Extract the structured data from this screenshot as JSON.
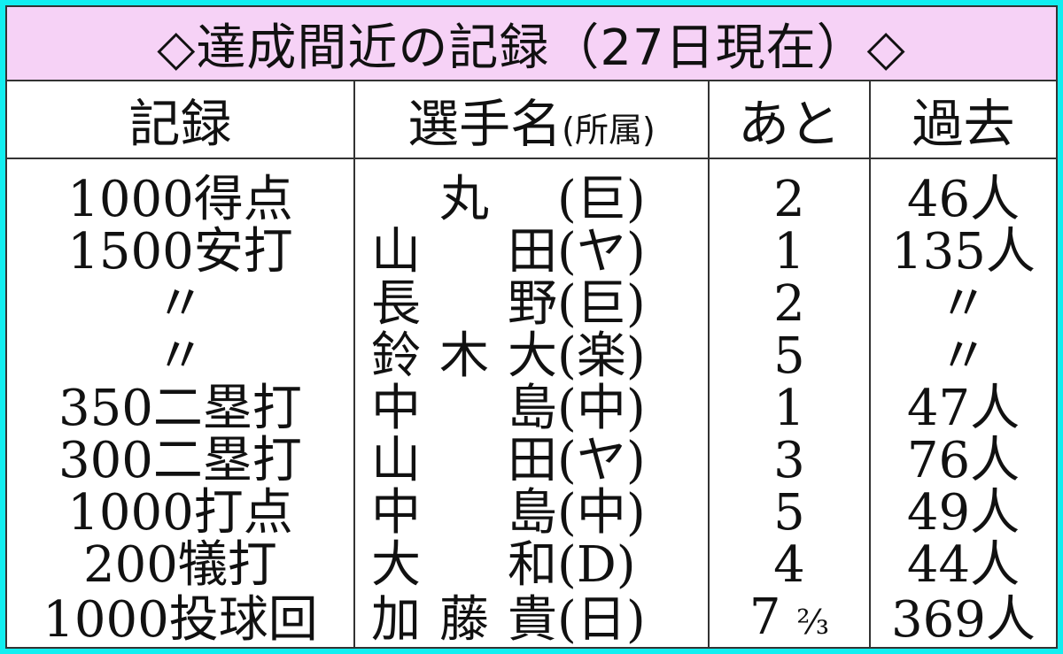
{
  "colors": {
    "border": "#12eef0",
    "title_bg": "#f6d2f6"
  },
  "title": "◇達成間近の記録（27日現在）◇",
  "headers": {
    "record": "記録",
    "player": "選手名",
    "affiliation": "(所属)",
    "remaining": "あと",
    "past": "過去"
  },
  "rows": [
    {
      "record": "1000得点",
      "player": "丸",
      "team": "(巨)",
      "remaining": "2",
      "past": "46人"
    },
    {
      "record": "1500安打",
      "player": "山田",
      "team": "(ヤ)",
      "remaining": "1",
      "past": "135人"
    },
    {
      "record": "〃",
      "player": "長野",
      "team": "(巨)",
      "remaining": "2",
      "past": "〃"
    },
    {
      "record": "〃",
      "player": "鈴木大",
      "team": "(楽)",
      "remaining": "5",
      "past": "〃"
    },
    {
      "record": "350二塁打",
      "player": "中島",
      "team": "(中)",
      "remaining": "1",
      "past": "47人"
    },
    {
      "record": "300二塁打",
      "player": "山田",
      "team": "(ヤ)",
      "remaining": "3",
      "past": "76人"
    },
    {
      "record": "1000打点",
      "player": "中島",
      "team": "(中)",
      "remaining": "5",
      "past": "49人"
    },
    {
      "record": "200犠打",
      "player": "大和",
      "team": "(D)",
      "remaining": "4",
      "past": "44人"
    },
    {
      "record": "1000投球回",
      "player": "加藤貴",
      "team": "(日)",
      "remaining": "7",
      "remaining_fraction": "⅔",
      "past": "369人"
    }
  ]
}
